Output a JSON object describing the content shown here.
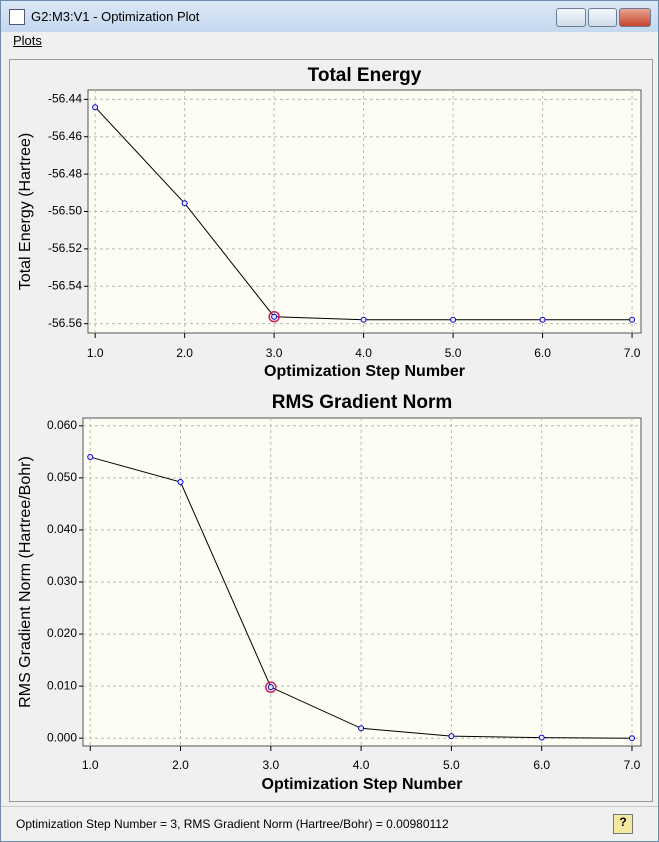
{
  "window": {
    "title": "G2:M3:V1 - Optimization Plot"
  },
  "menu": [
    "Plots"
  ],
  "status_bar": "Optimization Step Number = 3, RMS Gradient Norm (Hartree/Bohr) = 0.00980112",
  "chart_data": [
    {
      "type": "line",
      "title": "Total Energy",
      "x_label": "Optimization Step Number",
      "y_label": "Total Energy (Hartree)",
      "x": [
        1,
        2,
        3,
        4,
        5,
        6,
        7
      ],
      "series": [
        {
          "color": "#0000cc",
          "values": [
            -56.4442,
            -56.4956,
            -56.5563,
            -56.5579,
            -56.5579,
            -56.5579,
            -56.5579
          ]
        }
      ],
      "selected_x": 3,
      "xlim": [
        0.92,
        7.1
      ],
      "ylim": [
        -56.565,
        -56.435
      ],
      "xticks": [
        {
          "value": 1,
          "label": "1.0"
        },
        {
          "value": 2,
          "label": "2.0"
        },
        {
          "value": 3,
          "label": "3.0"
        },
        {
          "value": 4,
          "label": "4.0"
        },
        {
          "value": 5,
          "label": "5.0"
        },
        {
          "value": 6,
          "label": "6.0"
        },
        {
          "value": 7,
          "label": "7.0"
        }
      ],
      "yticks": [
        -56.44,
        -56.46,
        -56.48,
        {
          "value": -56.5,
          "label": "-56.50"
        },
        -56.52,
        -56.54,
        -56.56
      ],
      "grid": true
    },
    {
      "type": "line",
      "title": "RMS Gradient Norm",
      "x_label": "Optimization Step Number",
      "y_label": "RMS Gradient Norm (Hartree/Bohr)",
      "x": [
        1,
        2,
        3,
        4,
        5,
        6,
        7
      ],
      "series": [
        {
          "color": "#0000cc",
          "values": [
            0.054,
            0.0492,
            0.0098,
            0.0019,
            0.0004,
            0.0001,
            0.0
          ]
        }
      ],
      "selected_x": 3,
      "xlim": [
        0.92,
        7.1
      ],
      "ylim": [
        -0.0015,
        0.0615
      ],
      "xticks": [
        {
          "value": 1,
          "label": "1.0"
        },
        {
          "value": 2,
          "label": "2.0"
        },
        {
          "value": 3,
          "label": "3.0"
        },
        {
          "value": 4,
          "label": "4.0"
        },
        {
          "value": 5,
          "label": "5.0"
        },
        {
          "value": 6,
          "label": "6.0"
        },
        {
          "value": 7,
          "label": "7.0"
        }
      ],
      "yticks": [
        {
          "value": 0.06,
          "label": "0.060"
        },
        {
          "value": 0.05,
          "label": "0.050"
        },
        {
          "value": 0.04,
          "label": "0.040"
        },
        {
          "value": 0.03,
          "label": "0.030"
        },
        {
          "value": 0.02,
          "label": "0.020"
        },
        {
          "value": 0.01,
          "label": "0.010"
        },
        {
          "value": 0,
          "label": "0.000"
        }
      ],
      "grid": true
    }
  ]
}
